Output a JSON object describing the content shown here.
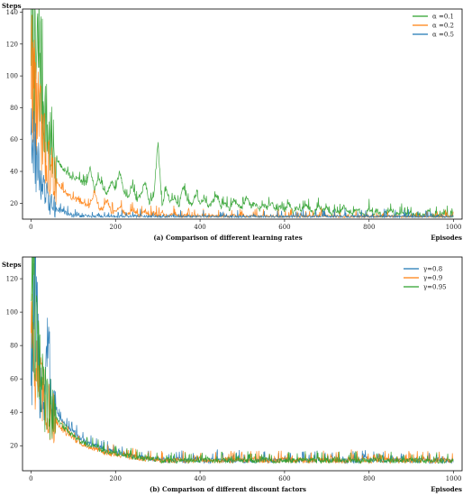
{
  "chart_data": [
    {
      "type": "line",
      "ylabel": "Steps",
      "xlabel": "Episodes",
      "caption": "(a) Comparison of different learning rates",
      "xlim": [
        -20,
        1020
      ],
      "ylim": [
        10,
        142
      ],
      "xticks": [
        0,
        200,
        400,
        600,
        800,
        1000
      ],
      "yticks": [
        20,
        40,
        60,
        80,
        100,
        120,
        140
      ],
      "legend_position": "top-right",
      "episodes": 1000,
      "series": [
        {
          "name": "α =0.1",
          "color": "#2ca02c",
          "values": [
            139,
            98,
            120,
            84,
            62,
            55,
            47,
            44,
            40,
            38,
            35,
            37,
            33,
            31,
            42,
            28,
            36,
            30,
            26,
            33,
            29,
            40,
            27,
            24,
            31,
            22,
            25,
            34,
            20,
            23,
            57,
            19,
            28,
            21,
            24,
            18,
            30,
            22,
            19,
            26,
            20,
            23,
            17,
            21,
            25,
            18,
            20,
            16,
            22,
            19,
            17,
            24,
            18,
            20,
            16,
            19,
            17,
            21,
            15,
            18,
            16,
            20,
            14,
            17,
            15,
            19,
            16,
            14,
            18,
            15,
            17,
            13,
            16,
            14,
            18,
            15,
            13,
            16,
            14,
            12,
            17,
            13,
            15,
            12,
            14,
            16,
            12,
            13,
            15,
            12,
            14,
            11,
            13,
            12,
            15,
            11,
            13,
            12,
            14,
            11
          ]
        },
        {
          "name": "α =0.2",
          "color": "#ff7f0e",
          "values": [
            110,
            90,
            70,
            56,
            44,
            38,
            34,
            30,
            27,
            25,
            23,
            22,
            20,
            19,
            18,
            28,
            17,
            16,
            22,
            15,
            14,
            18,
            14,
            13,
            16,
            13,
            12,
            15,
            12,
            14,
            12,
            13,
            11,
            12,
            14,
            11,
            12,
            13,
            11,
            12,
            11,
            13,
            11,
            12,
            11,
            12,
            10,
            11,
            12,
            11,
            13,
            10,
            11,
            12,
            10,
            11,
            10,
            12,
            11,
            10,
            11,
            10,
            12,
            10,
            11,
            10,
            11,
            10,
            12,
            11,
            10,
            11,
            10,
            11,
            10,
            12,
            10,
            11,
            10,
            11,
            10,
            11,
            10,
            12,
            10,
            11,
            10,
            11,
            10,
            11,
            10,
            11,
            10,
            11,
            10,
            11,
            10,
            11,
            10,
            11
          ]
        },
        {
          "name": "α =0.5",
          "color": "#1f77b4",
          "values": [
            80,
            50,
            38,
            28,
            22,
            18,
            16,
            15,
            14,
            13,
            12,
            12,
            11,
            12,
            11,
            11,
            12,
            10,
            11,
            11,
            10,
            11,
            10,
            11,
            10,
            10,
            11,
            10,
            11,
            10,
            10,
            11,
            10,
            10,
            11,
            10,
            10,
            11,
            10,
            10,
            11,
            10,
            10,
            10,
            11,
            10,
            10,
            11,
            10,
            10,
            10,
            11,
            10,
            10,
            10,
            11,
            10,
            10,
            10,
            10,
            11,
            10,
            10,
            10,
            11,
            10,
            10,
            10,
            10,
            11,
            10,
            10,
            10,
            10,
            11,
            10,
            10,
            10,
            10,
            11,
            10,
            10,
            10,
            10,
            11,
            10,
            10,
            10,
            10,
            11,
            10,
            10,
            10,
            10,
            11,
            10,
            10,
            10,
            10,
            11
          ]
        }
      ]
    },
    {
      "type": "line",
      "ylabel": "Steps",
      "xlabel": "Episodes",
      "caption": "(b) Comparison of different discount factors",
      "xlim": [
        -20,
        1020
      ],
      "ylim": [
        5,
        133
      ],
      "xticks": [
        0,
        200,
        400,
        600,
        800,
        1000
      ],
      "yticks": [
        20,
        40,
        60,
        80,
        100,
        120
      ],
      "legend_position": "top-right",
      "episodes": 1000,
      "series": [
        {
          "name": "γ=0.8",
          "color": "#1f77b4",
          "values": [
            70,
            104,
            60,
            48,
            79,
            45,
            40,
            36,
            33,
            30,
            28,
            26,
            24,
            22,
            21,
            20,
            19,
            18,
            17,
            17,
            16,
            15,
            15,
            14,
            14,
            13,
            13,
            13,
            12,
            12,
            12,
            12,
            11,
            11,
            11,
            12,
            11,
            11,
            11,
            12,
            11,
            11,
            11,
            11,
            12,
            11,
            11,
            11,
            11,
            12,
            11,
            11,
            11,
            11,
            11,
            12,
            11,
            11,
            11,
            11,
            11,
            12,
            11,
            11,
            11,
            11,
            11,
            12,
            11,
            11,
            11,
            11,
            11,
            12,
            11,
            11,
            11,
            11,
            11,
            12,
            11,
            11,
            11,
            11,
            11,
            11,
            12,
            11,
            11,
            11,
            11,
            11,
            11,
            12,
            11,
            11,
            11,
            11,
            11,
            11
          ]
        },
        {
          "name": "γ=0.9",
          "color": "#ff7f0e",
          "values": [
            108,
            70,
            55,
            47,
            42,
            37,
            34,
            31,
            28,
            26,
            24,
            22,
            21,
            20,
            19,
            18,
            17,
            16,
            16,
            15,
            15,
            14,
            14,
            13,
            13,
            13,
            12,
            12,
            12,
            12,
            12,
            11,
            11,
            11,
            11,
            12,
            11,
            11,
            11,
            11,
            12,
            11,
            11,
            11,
            11,
            11,
            12,
            11,
            11,
            11,
            11,
            11,
            11,
            12,
            11,
            11,
            11,
            11,
            11,
            11,
            12,
            11,
            11,
            11,
            11,
            11,
            11,
            11,
            12,
            11,
            11,
            11,
            11,
            11,
            11,
            11,
            12,
            11,
            11,
            11,
            11,
            11,
            11,
            11,
            12,
            11,
            11,
            11,
            11,
            11,
            11,
            11,
            11,
            12,
            11,
            11,
            11,
            11,
            11,
            11
          ]
        },
        {
          "name": "γ=0.95",
          "color": "#2ca02c",
          "values": [
            130,
            90,
            62,
            50,
            44,
            40,
            36,
            33,
            30,
            28,
            26,
            24,
            22,
            21,
            20,
            19,
            18,
            17,
            16,
            16,
            15,
            15,
            14,
            14,
            13,
            13,
            13,
            12,
            12,
            12,
            12,
            11,
            11,
            11,
            11,
            11,
            12,
            11,
            11,
            11,
            11,
            11,
            12,
            11,
            11,
            11,
            11,
            11,
            11,
            12,
            11,
            11,
            11,
            11,
            11,
            11,
            12,
            11,
            11,
            11,
            11,
            11,
            11,
            11,
            12,
            11,
            11,
            11,
            11,
            11,
            11,
            11,
            12,
            11,
            11,
            11,
            11,
            11,
            11,
            11,
            11,
            12,
            11,
            11,
            11,
            11,
            11,
            11,
            11,
            11,
            12,
            11,
            11,
            11,
            11,
            11,
            11,
            11,
            11,
            11
          ]
        }
      ]
    }
  ]
}
